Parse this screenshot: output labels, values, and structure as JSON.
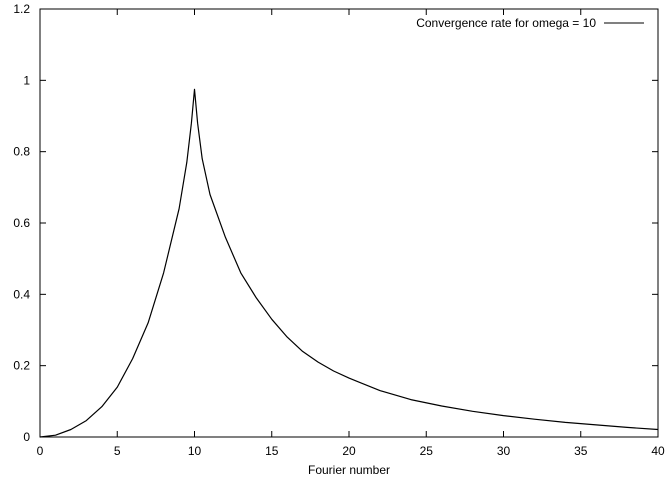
{
  "chart_data": {
    "type": "line",
    "title": "",
    "xlabel": "Fourier number",
    "ylabel": "",
    "xlim": [
      0,
      40
    ],
    "ylim": [
      0,
      1.2
    ],
    "xticks": [
      0,
      5,
      10,
      15,
      20,
      25,
      30,
      35,
      40
    ],
    "yticks": [
      0,
      0.2,
      0.4,
      0.6,
      0.8,
      1,
      1.2
    ],
    "xtick_labels": [
      "0",
      "5",
      "10",
      "15",
      "20",
      "25",
      "30",
      "35",
      "40"
    ],
    "ytick_labels": [
      "0",
      "0.2",
      "0.4",
      "0.6",
      "0.8",
      "1",
      "1.2"
    ],
    "grid": false,
    "legend_position": "top-right",
    "series": [
      {
        "name": "Convergence rate for omega = 10",
        "color": "#000000",
        "x": [
          0,
          1,
          2,
          3,
          4,
          5,
          6,
          7,
          8,
          9,
          9.5,
          9.8,
          10,
          10.2,
          10.5,
          11,
          12,
          13,
          14,
          15,
          16,
          17,
          18,
          19,
          20,
          22,
          24,
          26,
          28,
          30,
          32,
          34,
          36,
          38,
          40
        ],
        "y": [
          0,
          0.005,
          0.021,
          0.046,
          0.085,
          0.14,
          0.22,
          0.32,
          0.46,
          0.64,
          0.77,
          0.88,
          0.975,
          0.88,
          0.78,
          0.68,
          0.56,
          0.46,
          0.39,
          0.33,
          0.28,
          0.24,
          0.21,
          0.185,
          0.165,
          0.13,
          0.105,
          0.087,
          0.072,
          0.06,
          0.05,
          0.041,
          0.034,
          0.027,
          0.021
        ]
      }
    ]
  }
}
